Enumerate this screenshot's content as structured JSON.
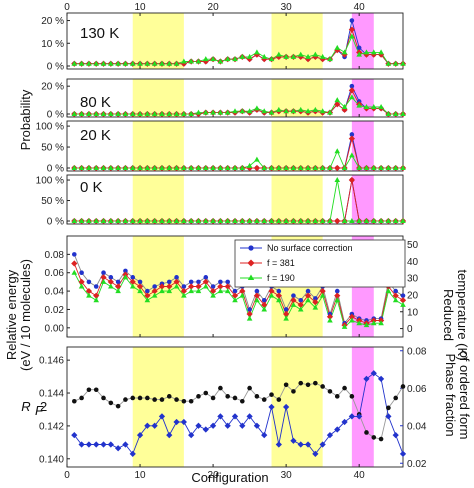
{
  "chart_data": {
    "type": "line",
    "xlabel": "Configuration",
    "x_ticks": [
      "0",
      "10",
      "20",
      "30",
      "40"
    ],
    "xlim": [
      0,
      46
    ],
    "shaded_regions": [
      {
        "from": 9,
        "to": 16,
        "color": "#ffff99"
      },
      {
        "from": 28,
        "to": 35,
        "color": "#ffff99"
      },
      {
        "from": 39,
        "to": 42,
        "color": "#ff99ff"
      }
    ],
    "probability_ylabel": "Probability",
    "probability_panels": [
      {
        "label": "130 K",
        "ylim": [
          0,
          22
        ],
        "ytick_labels": [
          "0 %",
          "10 %",
          "20 %"
        ],
        "ytick_values": [
          0,
          10,
          20
        ],
        "series": [
          {
            "color": "#2233cc",
            "values": [
              1,
              1,
              1,
              1,
              1,
              1,
              1,
              1,
              1,
              1,
              1,
              1,
              1,
              1,
              1,
              1,
              2,
              2,
              2,
              3,
              2,
              3,
              3,
              4,
              3,
              5,
              3,
              3,
              4,
              4,
              4,
              4,
              3,
              4,
              3,
              3,
              7,
              4,
              20,
              8,
              5,
              5,
              5,
              1,
              1,
              1
            ]
          },
          {
            "color": "#dd2222",
            "values": [
              1,
              1,
              1,
              1,
              1,
              1,
              1,
              1,
              1,
              1,
              1,
              1,
              1,
              1,
              1,
              1,
              2,
              2,
              2,
              3,
              2,
              3,
              3,
              4,
              3,
              5,
              3,
              3,
              4,
              4,
              4,
              4,
              3,
              4,
              3,
              3,
              7,
              5,
              16,
              6,
              5,
              5,
              5,
              1,
              1,
              1
            ]
          },
          {
            "color": "#22dd22",
            "values": [
              1,
              1,
              1,
              1,
              1,
              1,
              1,
              1,
              1,
              1,
              1,
              1,
              1,
              1,
              1,
              2,
              2,
              2,
              3,
              3,
              2,
              3,
              3,
              4,
              4,
              6,
              4,
              3,
              5,
              4,
              4,
              5,
              4,
              5,
              4,
              3,
              8,
              6,
              13,
              5,
              6,
              6,
              6,
              1,
              1,
              1
            ]
          }
        ]
      },
      {
        "label": "80 K",
        "ylim": [
          0,
          23
        ],
        "ytick_labels": [
          "0 %",
          "20 %"
        ],
        "ytick_values": [
          0,
          20
        ],
        "series": [
          {
            "color": "#2233cc",
            "values": [
              0,
              0,
              0,
              0,
              0,
              0,
              0,
              0,
              0,
              0,
              0,
              0,
              0,
              0,
              0,
              0,
              0,
              0,
              1,
              1,
              1,
              1,
              1,
              2,
              1,
              3,
              1,
              1,
              2,
              2,
              2,
              2,
              1,
              2,
              1,
              1,
              7,
              3,
              20,
              9,
              4,
              4,
              4,
              0,
              0,
              0
            ]
          },
          {
            "color": "#dd2222",
            "values": [
              0,
              0,
              0,
              0,
              0,
              0,
              0,
              0,
              0,
              0,
              0,
              0,
              0,
              0,
              0,
              0,
              0,
              0,
              1,
              1,
              1,
              1,
              1,
              2,
              1,
              3,
              1,
              1,
              2,
              2,
              2,
              2,
              1,
              2,
              1,
              1,
              7,
              3,
              17,
              7,
              4,
              4,
              4,
              0,
              0,
              0
            ]
          },
          {
            "color": "#22dd22",
            "values": [
              0,
              0,
              0,
              0,
              0,
              0,
              0,
              0,
              0,
              0,
              0,
              0,
              0,
              0,
              0,
              0,
              0,
              1,
              1,
              1,
              1,
              1,
              2,
              2,
              2,
              4,
              2,
              1,
              3,
              2,
              2,
              3,
              2,
              3,
              2,
              1,
              10,
              5,
              12,
              6,
              5,
              5,
              5,
              0,
              0,
              0
            ]
          }
        ]
      },
      {
        "label": "20 K",
        "ylim": [
          0,
          105
        ],
        "ytick_labels": [
          "0 %",
          "50 %",
          "100 %"
        ],
        "ytick_values": [
          0,
          50,
          100
        ],
        "series": [
          {
            "color": "#2233cc",
            "values": [
              0,
              0,
              0,
              0,
              0,
              0,
              0,
              0,
              0,
              0,
              0,
              0,
              0,
              0,
              0,
              0,
              0,
              0,
              0,
              0,
              0,
              0,
              0,
              0,
              0,
              0,
              0,
              0,
              0,
              0,
              0,
              0,
              0,
              0,
              0,
              0,
              0,
              0,
              80,
              0,
              0,
              0,
              0,
              0,
              0,
              0
            ]
          },
          {
            "color": "#dd2222",
            "values": [
              0,
              0,
              0,
              0,
              0,
              0,
              0,
              0,
              0,
              0,
              0,
              0,
              0,
              0,
              0,
              0,
              0,
              0,
              0,
              0,
              0,
              0,
              0,
              0,
              0,
              0,
              0,
              0,
              0,
              0,
              0,
              0,
              0,
              0,
              0,
              0,
              0,
              0,
              70,
              0,
              0,
              0,
              0,
              0,
              0,
              0
            ]
          },
          {
            "color": "#22dd22",
            "values": [
              0,
              0,
              0,
              0,
              0,
              0,
              0,
              0,
              0,
              0,
              0,
              0,
              0,
              0,
              0,
              0,
              0,
              0,
              0,
              0,
              0,
              0,
              0,
              0,
              5,
              20,
              0,
              0,
              0,
              0,
              0,
              0,
              0,
              0,
              0,
              0,
              40,
              0,
              30,
              0,
              0,
              0,
              0,
              0,
              0,
              0
            ]
          }
        ]
      },
      {
        "label": "0 K",
        "ylim": [
          0,
          105
        ],
        "ytick_labels": [
          "0 %",
          "50 %",
          "100 %"
        ],
        "ytick_values": [
          0,
          50,
          100
        ],
        "series": [
          {
            "color": "#2233cc",
            "values": [
              0,
              0,
              0,
              0,
              0,
              0,
              0,
              0,
              0,
              0,
              0,
              0,
              0,
              0,
              0,
              0,
              0,
              0,
              0,
              0,
              0,
              0,
              0,
              0,
              0,
              0,
              0,
              0,
              0,
              0,
              0,
              0,
              0,
              0,
              0,
              0,
              0,
              0,
              100,
              0,
              0,
              0,
              0,
              0,
              0,
              0
            ]
          },
          {
            "color": "#dd2222",
            "values": [
              0,
              0,
              0,
              0,
              0,
              0,
              0,
              0,
              0,
              0,
              0,
              0,
              0,
              0,
              0,
              0,
              0,
              0,
              0,
              0,
              0,
              0,
              0,
              0,
              0,
              0,
              0,
              0,
              0,
              0,
              0,
              0,
              0,
              0,
              0,
              0,
              0,
              0,
              100,
              0,
              0,
              0,
              0,
              0,
              0,
              0
            ]
          },
          {
            "color": "#22dd22",
            "values": [
              0,
              0,
              0,
              0,
              0,
              0,
              0,
              0,
              0,
              0,
              0,
              0,
              0,
              0,
              0,
              0,
              0,
              0,
              0,
              0,
              0,
              0,
              0,
              0,
              0,
              0,
              0,
              0,
              0,
              0,
              0,
              0,
              0,
              0,
              0,
              0,
              100,
              0,
              0,
              0,
              0,
              0,
              0,
              0,
              0,
              0
            ]
          }
        ]
      }
    ],
    "energy_panel": {
      "ylabel_line1": "Relative energy",
      "ylabel_line2": "(eV / 10 molecules)",
      "ylim": [
        -0.01,
        0.1
      ],
      "ytick_labels": [
        "0.00",
        "0.02",
        "0.04",
        "0.06",
        "0.08"
      ],
      "ytick_values": [
        0,
        0.02,
        0.04,
        0.06,
        0.08
      ],
      "y2label_line1": "Reduced",
      "y2label_line2": "temperature (K)",
      "y2lim": [
        -5,
        55
      ],
      "y2tick_labels": [
        "0",
        "10",
        "20",
        "30",
        "40",
        "50"
      ],
      "y2tick_values": [
        0,
        10,
        20,
        30,
        40,
        50
      ],
      "legend": [
        {
          "label": "No surface correction",
          "color": "#2233cc"
        },
        {
          "label": "f = 381",
          "color": "#dd2222"
        },
        {
          "label": "f = 190",
          "color": "#22dd22"
        }
      ],
      "legend_position": "top-right",
      "series": [
        {
          "color": "#2233cc",
          "values": [
            0.08,
            0.06,
            0.05,
            0.045,
            0.06,
            0.055,
            0.05,
            0.062,
            0.055,
            0.05,
            0.04,
            0.045,
            0.048,
            0.05,
            0.055,
            0.045,
            0.05,
            0.05,
            0.055,
            0.045,
            0.05,
            0.05,
            0.04,
            0.045,
            0.02,
            0.04,
            0.03,
            0.045,
            0.04,
            0.02,
            0.035,
            0.03,
            0.04,
            0.032,
            0.045,
            0.015,
            0.04,
            0.005,
            0.015,
            0.01,
            0.008,
            0.01,
            0.01,
            0.05,
            0.04,
            0.035
          ]
        },
        {
          "color": "#dd2222",
          "values": [
            0.07,
            0.05,
            0.04,
            0.035,
            0.055,
            0.05,
            0.045,
            0.058,
            0.05,
            0.045,
            0.035,
            0.04,
            0.045,
            0.045,
            0.05,
            0.04,
            0.045,
            0.045,
            0.05,
            0.04,
            0.045,
            0.045,
            0.035,
            0.04,
            0.015,
            0.035,
            0.025,
            0.04,
            0.035,
            0.015,
            0.03,
            0.025,
            0.035,
            0.028,
            0.04,
            0.012,
            0.035,
            0.003,
            0.012,
            0.008,
            0.005,
            0.008,
            0.008,
            0.045,
            0.035,
            0.03
          ]
        },
        {
          "color": "#22dd22",
          "values": [
            0.06,
            0.045,
            0.035,
            0.03,
            0.05,
            0.045,
            0.04,
            0.055,
            0.045,
            0.04,
            0.03,
            0.035,
            0.04,
            0.04,
            0.045,
            0.035,
            0.04,
            0.04,
            0.045,
            0.035,
            0.04,
            0.04,
            0.03,
            0.035,
            0.01,
            0.03,
            0.02,
            0.035,
            0.03,
            0.01,
            0.025,
            0.02,
            0.03,
            0.022,
            0.035,
            0.008,
            0.03,
            0.001,
            0.008,
            0.005,
            0.003,
            0.005,
            0.005,
            0.04,
            0.03,
            0.025
          ]
        }
      ]
    },
    "rf_panel": {
      "ylabel": "R",
      "ylabel_sub": "F",
      "ylabel_sup": "2",
      "ylim": [
        0.1395,
        0.1468
      ],
      "ytick_labels": [
        "0.140",
        "0.142",
        "0.144",
        "0.146"
      ],
      "ytick_values": [
        0.14,
        0.142,
        0.144,
        0.146
      ],
      "y2label_line1": "Phase fraction",
      "y2label_line2": "of ordered form",
      "y2lim": [
        0.018,
        0.082
      ],
      "y2tick_labels": [
        "0.02",
        "0.04",
        "0.06",
        "0.08"
      ],
      "y2tick_values": [
        0.02,
        0.04,
        0.06,
        0.08
      ],
      "y2color": "#2233cc",
      "series": [
        {
          "axis": "left",
          "color": "#111111",
          "values": [
            0.1435,
            0.1437,
            0.1442,
            0.1442,
            0.1437,
            0.1434,
            0.1432,
            0.1436,
            0.1437,
            0.1437,
            0.1437,
            0.1436,
            0.1436,
            0.1438,
            0.1436,
            0.1435,
            0.1435,
            0.1438,
            0.144,
            0.1437,
            0.1443,
            0.1438,
            0.1437,
            0.1435,
            0.1443,
            0.1438,
            0.1436,
            0.1439,
            0.1436,
            0.1445,
            0.1441,
            0.1446,
            0.1445,
            0.1446,
            0.1444,
            0.1441,
            0.1438,
            0.1443,
            0.1438,
            0.1427,
            0.1416,
            0.1413,
            0.1412,
            0.1431,
            0.1437,
            0.1444
          ]
        },
        {
          "axis": "right",
          "color": "#2233cc",
          "values": [
            0.035,
            0.03,
            0.03,
            0.03,
            0.03,
            0.03,
            0.028,
            0.03,
            0.025,
            0.035,
            0.04,
            0.04,
            0.045,
            0.035,
            0.042,
            0.042,
            0.035,
            0.04,
            0.038,
            0.04,
            0.045,
            0.04,
            0.045,
            0.04,
            0.045,
            0.04,
            0.035,
            0.05,
            0.03,
            0.05,
            0.032,
            0.03,
            0.03,
            0.025,
            0.03,
            0.035,
            0.038,
            0.042,
            0.045,
            0.045,
            0.065,
            0.068,
            0.065,
            0.045,
            0.035,
            0.025
          ]
        }
      ]
    }
  }
}
